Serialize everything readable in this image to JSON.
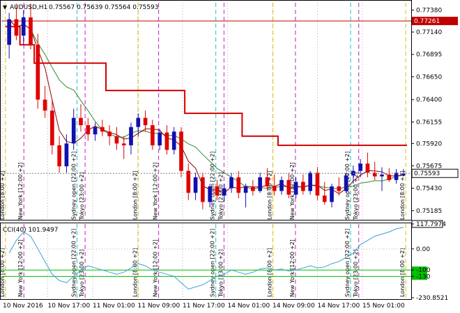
{
  "header": {
    "symbol": "AUDUSD,H1",
    "ohlc": "0.75567 0.75639 0.75564 0.75593"
  },
  "cci_header": "CCI(40) 101.9497",
  "colors": {
    "bull": "#1010b0",
    "bear": "#e00000",
    "ma_fast": "#8b0000",
    "ma_slow": "#2e8b2e",
    "stop_line": "#d40000",
    "hline_red": "#c00000",
    "cci_line": "#3aa0d8",
    "cci_levels": "#00c000",
    "sep_yellow": "#e0c000",
    "sep_cyan": "#20c0c0",
    "sep_magenta": "#c020c0"
  },
  "chart_data": {
    "type": "line",
    "title": "AUDUSD,H1",
    "price_ticks": [
      "0.77380",
      "0.77140",
      "0.76895",
      "0.76650",
      "0.76400",
      "0.76155",
      "0.75920",
      "0.75675",
      "0.75430",
      "0.75185"
    ],
    "price_marker_red": "0.77261",
    "price_marker_current": "0.75593",
    "ylim": [
      0.751,
      0.7746
    ],
    "time_ticks": [
      "10 Nov 2016",
      "10 Nov 17:00",
      "11 Nov 01:00",
      "11 Nov 09:00",
      "11 Nov 17:00",
      "14 Nov 01:00",
      "14 Nov 09:00",
      "14 Nov 17:00",
      "15 Nov 01:00"
    ],
    "candles": [
      [
        0.77,
        0.7735,
        0.7685,
        0.7728
      ],
      [
        0.7728,
        0.7745,
        0.7705,
        0.771
      ],
      [
        0.771,
        0.7738,
        0.77,
        0.773
      ],
      [
        0.773,
        0.7745,
        0.7695,
        0.77
      ],
      [
        0.77,
        0.7712,
        0.763,
        0.764
      ],
      [
        0.764,
        0.7655,
        0.762,
        0.7628
      ],
      [
        0.7628,
        0.764,
        0.758,
        0.759
      ],
      [
        0.759,
        0.76,
        0.756,
        0.7567
      ],
      [
        0.7567,
        0.7602,
        0.756,
        0.7592
      ],
      [
        0.7592,
        0.763,
        0.7585,
        0.762
      ],
      [
        0.762,
        0.7635,
        0.7605,
        0.7612
      ],
      [
        0.7612,
        0.762,
        0.7595,
        0.7602
      ],
      [
        0.7602,
        0.7615,
        0.7595,
        0.761
      ],
      [
        0.761,
        0.7618,
        0.76,
        0.7605
      ],
      [
        0.7605,
        0.7612,
        0.759,
        0.76
      ],
      [
        0.76,
        0.761,
        0.7585,
        0.7592
      ],
      [
        0.7592,
        0.76,
        0.7575,
        0.759
      ],
      [
        0.759,
        0.7615,
        0.758,
        0.761
      ],
      [
        0.761,
        0.7625,
        0.76,
        0.762
      ],
      [
        0.762,
        0.7628,
        0.7605,
        0.7612
      ],
      [
        0.7612,
        0.7618,
        0.7585,
        0.759
      ],
      [
        0.759,
        0.7608,
        0.7585,
        0.7604
      ],
      [
        0.7604,
        0.7612,
        0.758,
        0.7585
      ],
      [
        0.7585,
        0.761,
        0.758,
        0.7605
      ],
      [
        0.7605,
        0.761,
        0.7555,
        0.7562
      ],
      [
        0.7562,
        0.757,
        0.753,
        0.7538
      ],
      [
        0.7538,
        0.756,
        0.753,
        0.7555
      ],
      [
        0.7555,
        0.756,
        0.752,
        0.7528
      ],
      [
        0.7528,
        0.7548,
        0.7522,
        0.7545
      ],
      [
        0.7545,
        0.7552,
        0.753,
        0.7535
      ],
      [
        0.7535,
        0.7548,
        0.7528,
        0.7543
      ],
      [
        0.7543,
        0.756,
        0.7538,
        0.7555
      ],
      [
        0.7555,
        0.7562,
        0.7532,
        0.7538
      ],
      [
        0.7538,
        0.7548,
        0.7522,
        0.7545
      ],
      [
        0.7545,
        0.7552,
        0.7535,
        0.754
      ],
      [
        0.754,
        0.756,
        0.7538,
        0.7555
      ],
      [
        0.7555,
        0.7565,
        0.754,
        0.7545
      ],
      [
        0.7545,
        0.7558,
        0.7535,
        0.754
      ],
      [
        0.754,
        0.7556,
        0.7536,
        0.7552
      ],
      [
        0.7552,
        0.756,
        0.7532,
        0.7536
      ],
      [
        0.7536,
        0.7555,
        0.7532,
        0.755
      ],
      [
        0.755,
        0.7558,
        0.7536,
        0.754
      ],
      [
        0.754,
        0.7562,
        0.7536,
        0.756
      ],
      [
        0.756,
        0.7566,
        0.753,
        0.7535
      ],
      [
        0.7535,
        0.755,
        0.7525,
        0.7528
      ],
      [
        0.7528,
        0.7548,
        0.7522,
        0.7545
      ],
      [
        0.7545,
        0.7555,
        0.7535,
        0.754
      ],
      [
        0.754,
        0.756,
        0.7538,
        0.7557
      ],
      [
        0.7557,
        0.7568,
        0.7548,
        0.7562
      ],
      [
        0.7562,
        0.7575,
        0.7555,
        0.757
      ],
      [
        0.757,
        0.7582,
        0.7555,
        0.756
      ],
      [
        0.756,
        0.7572,
        0.7552,
        0.7556
      ],
      [
        0.7556,
        0.7566,
        0.754,
        0.7558
      ],
      [
        0.7558,
        0.7565,
        0.755,
        0.7552
      ],
      [
        0.7552,
        0.7564,
        0.7548,
        0.756
      ],
      [
        0.7557,
        0.7564,
        0.7556,
        0.7559
      ]
    ],
    "stop_line": [
      0.772,
      0.772,
      0.77,
      0.77,
      0.768,
      0.768,
      0.768,
      0.768,
      0.768,
      0.768,
      0.768,
      0.768,
      0.768,
      0.768,
      0.765,
      0.765,
      0.765,
      0.765,
      0.765,
      0.765,
      0.765,
      0.765,
      0.765,
      0.765,
      0.765,
      0.7625,
      0.7625,
      0.7625,
      0.7625,
      0.7625,
      0.7625,
      0.7625,
      0.7625,
      0.76,
      0.76,
      0.76,
      0.76,
      0.76,
      0.759,
      0.759,
      0.759,
      0.759,
      0.759,
      0.759,
      0.759,
      0.759,
      0.759,
      0.759,
      0.759,
      0.759,
      0.759,
      0.759,
      0.759,
      0.759,
      0.759,
      0.759
    ],
    "cci": {
      "name": "CCI(40) 101.9497",
      "ticks": [
        "117.7974",
        "0.00",
        "-100",
        "-130",
        "-230.8521"
      ],
      "ylim": [
        -230.8521,
        117.7974
      ],
      "levels": [
        -100,
        -130
      ],
      "values": [
        -20,
        40,
        80,
        60,
        0,
        -60,
        -120,
        -150,
        -160,
        -130,
        -100,
        -80,
        -90,
        -100,
        -110,
        -120,
        -110,
        -90,
        -70,
        -80,
        -100,
        -110,
        -120,
        -130,
        -160,
        -190,
        -180,
        -170,
        -150,
        -130,
        -120,
        -100,
        -110,
        -120,
        -110,
        -95,
        -90,
        -100,
        -95,
        -105,
        -100,
        -90,
        -80,
        -90,
        -85,
        -70,
        -60,
        -40,
        -20,
        20,
        40,
        60,
        70,
        80,
        95,
        102
      ]
    },
    "session_labels": [
      {
        "x_frac": 0.01,
        "text": "London [8:00 +2]"
      },
      {
        "x_frac": 0.055,
        "text": "New York [12:00 +2]"
      },
      {
        "x_frac": 0.185,
        "text": "Sydney open [22:00 +2]"
      },
      {
        "x_frac": 0.205,
        "text": "Tokyo [23:00 +2]"
      },
      {
        "x_frac": 0.335,
        "text": "London [8:00 +2]"
      },
      {
        "x_frac": 0.385,
        "text": "New York [12:00 +2]"
      },
      {
        "x_frac": 0.525,
        "text": "Sydney open [22:00 +2]"
      },
      {
        "x_frac": 0.545,
        "text": "Tokyo [23:00 +2]"
      },
      {
        "x_frac": 0.665,
        "text": "London [8:00 +2]"
      },
      {
        "x_frac": 0.72,
        "text": "New York [12:00 +2]"
      },
      {
        "x_frac": 0.855,
        "text": "Sydney open [22:00 +2]"
      },
      {
        "x_frac": 0.875,
        "text": "Tokyo [23:00 +2]"
      },
      {
        "x_frac": 0.99,
        "text": "London [8:00 +2]"
      }
    ]
  }
}
